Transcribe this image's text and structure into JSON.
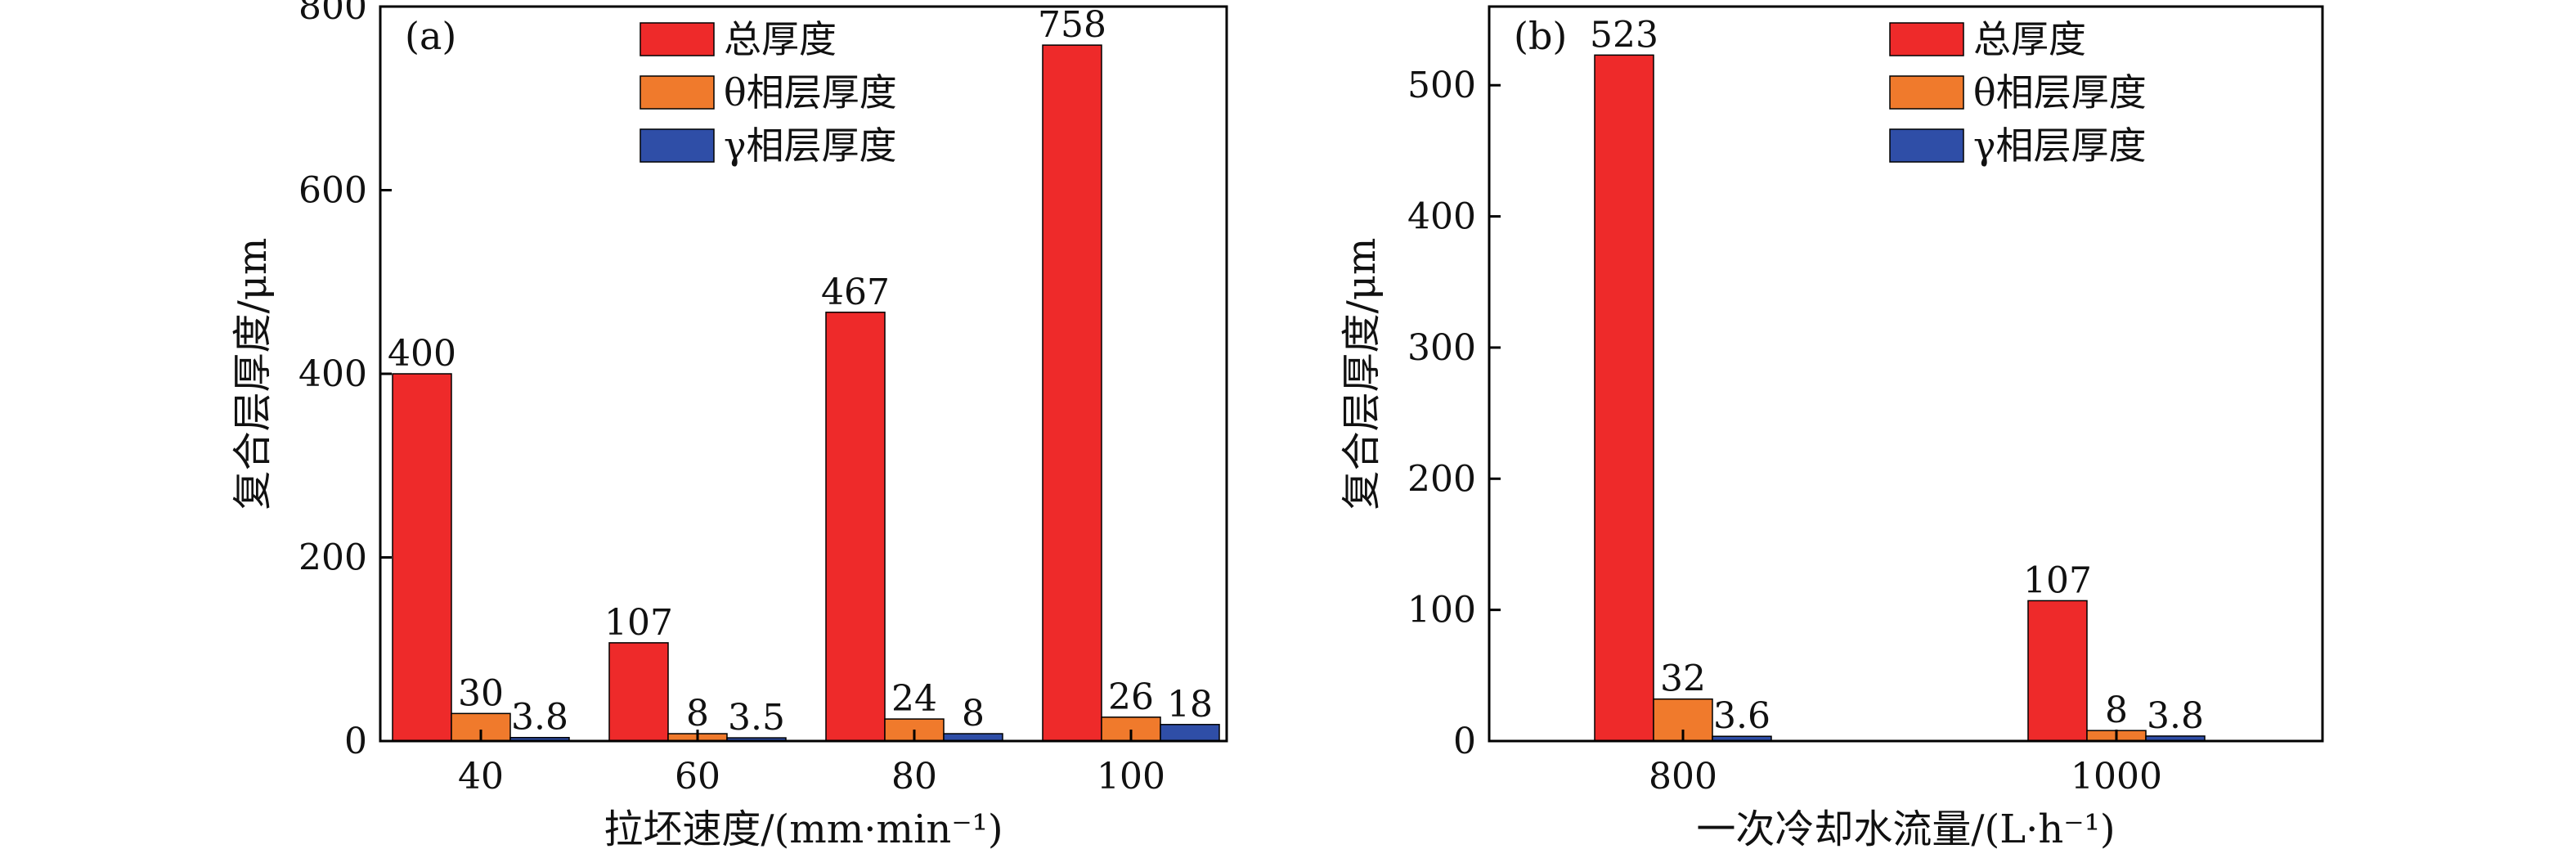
{
  "chart_data": [
    {
      "type": "bar",
      "panel_label": "(a)",
      "categories": [
        "40",
        "60",
        "80",
        "100"
      ],
      "series": [
        {
          "name": "总厚度",
          "color": "#ee2a2a",
          "values": [
            400,
            107,
            467,
            758
          ],
          "labels": [
            "400",
            "107",
            "467",
            "758"
          ]
        },
        {
          "name": "θ相层厚度",
          "color": "#f07a2c",
          "values": [
            30,
            8,
            24,
            26
          ],
          "labels": [
            "30",
            "8",
            "24",
            "26"
          ]
        },
        {
          "name": "γ相层厚度",
          "color": "#2f4ea7",
          "values": [
            3.8,
            3.5,
            8,
            18
          ],
          "labels": [
            "3.8",
            "3.5",
            "8",
            "18"
          ]
        }
      ],
      "xlabel": "拉坯速度/(mm·min⁻¹)",
      "ylabel": "复合层厚度/μm",
      "ylim": [
        0,
        800
      ],
      "yticks": [
        "0",
        "200",
        "400",
        "600",
        "800"
      ],
      "legend_position": "top-right",
      "grid": false
    },
    {
      "type": "bar",
      "panel_label": "(b)",
      "categories": [
        "800",
        "1000"
      ],
      "series": [
        {
          "name": "总厚度",
          "color": "#ee2a2a",
          "values": [
            523,
            107
          ],
          "labels": [
            "523",
            "107"
          ]
        },
        {
          "name": "θ相层厚度",
          "color": "#f07a2c",
          "values": [
            32,
            8
          ],
          "labels": [
            "32",
            "8"
          ]
        },
        {
          "name": "γ相层厚度",
          "color": "#2f4ea7",
          "values": [
            3.6,
            3.8
          ],
          "labels": [
            "3.6",
            "3.8"
          ]
        }
      ],
      "xlabel": "一次冷却水流量/(L·h⁻¹)",
      "ylabel": "复合层厚度/μm",
      "ylim": [
        0,
        560
      ],
      "yticks": [
        "0",
        "100",
        "200",
        "300",
        "400",
        "500"
      ],
      "legend_position": "top-right",
      "grid": false
    }
  ]
}
